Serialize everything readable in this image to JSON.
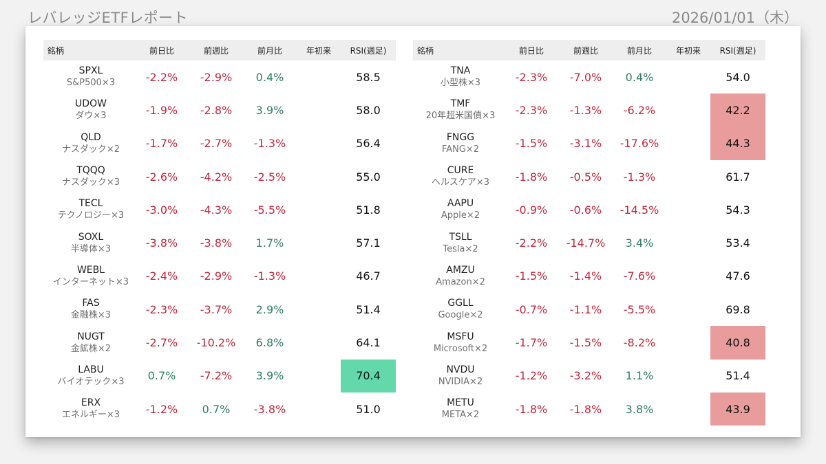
{
  "header": {
    "title": "レバレッジETFレポート",
    "date": "2026/01/01（木）"
  },
  "columns": [
    "銘柄",
    "前日比",
    "前週比",
    "前月比",
    "年初来",
    "RSI(週足)"
  ],
  "colors": {
    "negative": "#c0283c",
    "positive": "#2e7d62",
    "rsi_high": "#63d9ab",
    "rsi_low": "#e89c9c"
  },
  "left_table": [
    {
      "ticker": "SPXL",
      "desc": "S&P500×3",
      "d1": "-2.2%",
      "w1": "-2.9%",
      "m1": "0.4%",
      "ytd": "",
      "rsi": "58.5",
      "rsi_flag": "none"
    },
    {
      "ticker": "UDOW",
      "desc": "ダウ×3",
      "d1": "-1.9%",
      "w1": "-2.8%",
      "m1": "3.9%",
      "ytd": "",
      "rsi": "58.0",
      "rsi_flag": "none"
    },
    {
      "ticker": "QLD",
      "desc": "ナスダック×2",
      "d1": "-1.7%",
      "w1": "-2.7%",
      "m1": "-1.3%",
      "ytd": "",
      "rsi": "56.4",
      "rsi_flag": "none"
    },
    {
      "ticker": "TQQQ",
      "desc": "ナスダック×3",
      "d1": "-2.6%",
      "w1": "-4.2%",
      "m1": "-2.5%",
      "ytd": "",
      "rsi": "55.0",
      "rsi_flag": "none"
    },
    {
      "ticker": "TECL",
      "desc": "テクノロジー×3",
      "d1": "-3.0%",
      "w1": "-4.3%",
      "m1": "-5.5%",
      "ytd": "",
      "rsi": "51.8",
      "rsi_flag": "none"
    },
    {
      "ticker": "SOXL",
      "desc": "半導体×3",
      "d1": "-3.8%",
      "w1": "-3.8%",
      "m1": "1.7%",
      "ytd": "",
      "rsi": "57.1",
      "rsi_flag": "none"
    },
    {
      "ticker": "WEBL",
      "desc": "インターネット×3",
      "d1": "-2.4%",
      "w1": "-2.9%",
      "m1": "-1.3%",
      "ytd": "",
      "rsi": "46.7",
      "rsi_flag": "none"
    },
    {
      "ticker": "FAS",
      "desc": "金融株×3",
      "d1": "-2.3%",
      "w1": "-3.7%",
      "m1": "2.9%",
      "ytd": "",
      "rsi": "51.4",
      "rsi_flag": "none"
    },
    {
      "ticker": "NUGT",
      "desc": "金鉱株×2",
      "d1": "-2.7%",
      "w1": "-10.2%",
      "m1": "6.8%",
      "ytd": "",
      "rsi": "64.1",
      "rsi_flag": "none"
    },
    {
      "ticker": "LABU",
      "desc": "バイオテック×3",
      "d1": "0.7%",
      "w1": "-7.2%",
      "m1": "3.9%",
      "ytd": "",
      "rsi": "70.4",
      "rsi_flag": "high"
    },
    {
      "ticker": "ERX",
      "desc": "エネルギー×3",
      "d1": "-1.2%",
      "w1": "0.7%",
      "m1": "-3.8%",
      "ytd": "",
      "rsi": "51.0",
      "rsi_flag": "none"
    }
  ],
  "right_table": [
    {
      "ticker": "TNA",
      "desc": "小型株×3",
      "d1": "-2.3%",
      "w1": "-7.0%",
      "m1": "0.4%",
      "ytd": "",
      "rsi": "54.0",
      "rsi_flag": "none"
    },
    {
      "ticker": "TMF",
      "desc": "20年超米国債×3",
      "d1": "-2.3%",
      "w1": "-1.3%",
      "m1": "-6.2%",
      "ytd": "",
      "rsi": "42.2",
      "rsi_flag": "low"
    },
    {
      "ticker": "FNGG",
      "desc": "FANG×2",
      "d1": "-1.5%",
      "w1": "-3.1%",
      "m1": "-17.6%",
      "ytd": "",
      "rsi": "44.3",
      "rsi_flag": "low"
    },
    {
      "ticker": "CURE",
      "desc": "ヘルスケア×3",
      "d1": "-1.8%",
      "w1": "-0.5%",
      "m1": "-1.3%",
      "ytd": "",
      "rsi": "61.7",
      "rsi_flag": "none"
    },
    {
      "ticker": "AAPU",
      "desc": "Apple×2",
      "d1": "-0.9%",
      "w1": "-0.6%",
      "m1": "-14.5%",
      "ytd": "",
      "rsi": "54.3",
      "rsi_flag": "none"
    },
    {
      "ticker": "TSLL",
      "desc": "Tesla×2",
      "d1": "-2.2%",
      "w1": "-14.7%",
      "m1": "3.4%",
      "ytd": "",
      "rsi": "53.4",
      "rsi_flag": "none"
    },
    {
      "ticker": "AMZU",
      "desc": "Amazon×2",
      "d1": "-1.5%",
      "w1": "-1.4%",
      "m1": "-7.6%",
      "ytd": "",
      "rsi": "47.6",
      "rsi_flag": "none"
    },
    {
      "ticker": "GGLL",
      "desc": "Google×2",
      "d1": "-0.7%",
      "w1": "-1.1%",
      "m1": "-5.5%",
      "ytd": "",
      "rsi": "69.8",
      "rsi_flag": "none"
    },
    {
      "ticker": "MSFU",
      "desc": "Microsoft×2",
      "d1": "-1.7%",
      "w1": "-1.5%",
      "m1": "-8.2%",
      "ytd": "",
      "rsi": "40.8",
      "rsi_flag": "low"
    },
    {
      "ticker": "NVDU",
      "desc": "NVIDIA×2",
      "d1": "-1.2%",
      "w1": "-3.2%",
      "m1": "1.1%",
      "ytd": "",
      "rsi": "51.4",
      "rsi_flag": "none"
    },
    {
      "ticker": "METU",
      "desc": "META×2",
      "d1": "-1.8%",
      "w1": "-1.8%",
      "m1": "3.8%",
      "ytd": "",
      "rsi": "43.9",
      "rsi_flag": "low"
    }
  ]
}
